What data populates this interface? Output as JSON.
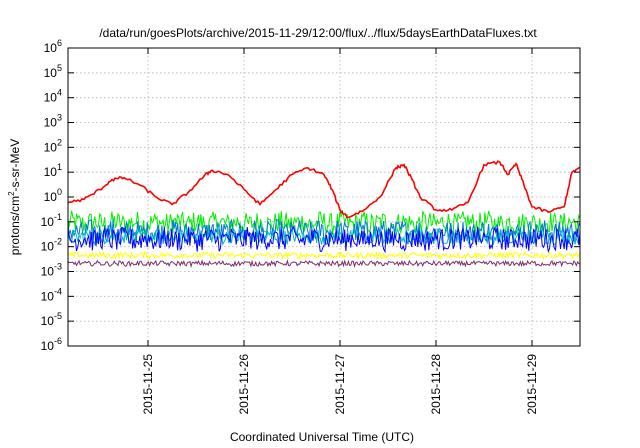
{
  "chart_data": {
    "type": "line",
    "title": "/data/run/goesPlots/archive/2015-11-29/12:00/flux/../flux/5daysEarthDataFluxes.txt",
    "xlabel": "Coordinated Universal Time (UTC)",
    "ylabel": {
      "base": "protons/cm",
      "sup": "2",
      "rest": "-s-sr-MeV"
    },
    "yscale": "log",
    "ylim": [
      1e-06,
      1000000.0
    ],
    "xlim": [
      "2015-11-24 04:00",
      "2015-11-29 12:00"
    ],
    "y_tick_exponents": [
      6,
      5,
      4,
      3,
      2,
      1,
      0,
      -1,
      -2,
      -3,
      -4,
      -5,
      -6
    ],
    "x_ticks": [
      "2015-11-25",
      "2015-11-26",
      "2015-11-27",
      "2015-11-28",
      "2015-11-29"
    ],
    "grid": true,
    "series": [
      {
        "color": "#ff0000",
        "points": [
          [
            "2015-11-24 04:00",
            0.6
          ],
          [
            "2015-11-24 08:00",
            0.8
          ],
          [
            "2015-11-24 12:00",
            2.0
          ],
          [
            "2015-11-24 15:00",
            5.0
          ],
          [
            "2015-11-24 18:00",
            6.0
          ],
          [
            "2015-11-24 22:00",
            3.0
          ],
          [
            "2015-11-25 02:00",
            1.0
          ],
          [
            "2015-11-25 06:00",
            0.5
          ],
          [
            "2015-11-25 10:00",
            1.5
          ],
          [
            "2015-11-25 14:00",
            7.0
          ],
          [
            "2015-11-25 16:00",
            12.0
          ],
          [
            "2015-11-25 20:00",
            8.0
          ],
          [
            "2015-11-26 00:00",
            2.0
          ],
          [
            "2015-11-26 04:00",
            0.5
          ],
          [
            "2015-11-26 08:00",
            2.0
          ],
          [
            "2015-11-26 12:00",
            8.0
          ],
          [
            "2015-11-26 16:00",
            15.0
          ],
          [
            "2015-11-26 20:00",
            8.0
          ],
          [
            "2015-11-26 22:00",
            2.0
          ],
          [
            "2015-11-27 00:00",
            0.3
          ],
          [
            "2015-11-27 02:00",
            0.15
          ],
          [
            "2015-11-27 06:00",
            0.3
          ],
          [
            "2015-11-27 10:00",
            1.0
          ],
          [
            "2015-11-27 14:00",
            15.0
          ],
          [
            "2015-11-27 16:00",
            20.0
          ],
          [
            "2015-11-27 18:00",
            5.0
          ],
          [
            "2015-11-27 20:00",
            1.0
          ],
          [
            "2015-11-28 00:00",
            0.3
          ],
          [
            "2015-11-28 04:00",
            0.3
          ],
          [
            "2015-11-28 08:00",
            0.6
          ],
          [
            "2015-11-28 12:00",
            20.0
          ],
          [
            "2015-11-28 16:00",
            25.0
          ],
          [
            "2015-11-28 18:00",
            8.0
          ],
          [
            "2015-11-28 20:00",
            22.0
          ],
          [
            "2015-11-28 22:00",
            3.0
          ],
          [
            "2015-11-29 00:00",
            0.4
          ],
          [
            "2015-11-29 04:00",
            0.25
          ],
          [
            "2015-11-29 08:00",
            0.4
          ],
          [
            "2015-11-29 10:00",
            10.0
          ],
          [
            "2015-11-29 12:00",
            15.0
          ]
        ]
      },
      {
        "color": "#00ee00",
        "level": 0.09,
        "spread": 0.45
      },
      {
        "color": "#0077dd",
        "level": 0.04,
        "spread": 0.45
      },
      {
        "color": "#00bbbb",
        "level": 0.025,
        "spread": 0.3
      },
      {
        "color": "#0000ff",
        "level": 0.02,
        "spread": 0.45
      },
      {
        "color": "#ffff00",
        "level": 0.0045,
        "spread": 0.12
      },
      {
        "color": "#7b2d6b",
        "level": 0.0021,
        "spread": 0.1
      }
    ]
  }
}
